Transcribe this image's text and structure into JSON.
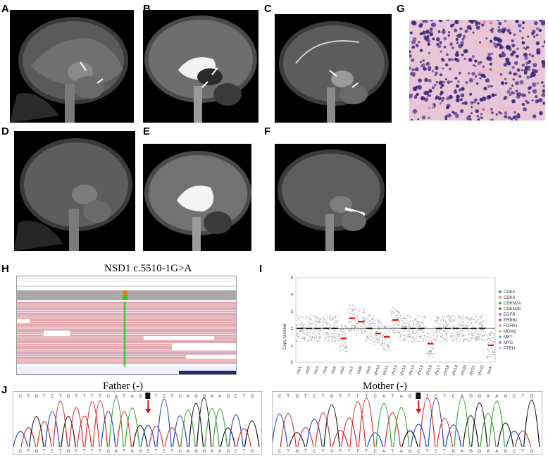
{
  "panels": {
    "A": "A",
    "B": "B",
    "C": "C",
    "D": "D",
    "E": "E",
    "F": "F",
    "G": "G",
    "H": "H",
    "I": "I",
    "J": "J"
  },
  "igv": {
    "title": "NSD1 c.5510-1G>A"
  },
  "cnv_plot": {
    "ylabel": "Copy Number",
    "yticks": [
      "0",
      "1",
      "2",
      "3",
      "4",
      "5"
    ],
    "chromosomes": [
      "chr1",
      "chr2",
      "chr3",
      "chr4",
      "chr5",
      "chr6",
      "chr7",
      "chr8",
      "chr9",
      "chr10",
      "chr11",
      "chr12",
      "chr13",
      "chr14",
      "chr15",
      "chr16",
      "chr17",
      "chr18",
      "chr19",
      "chr20",
      "chr21",
      "chr22",
      "chrX"
    ],
    "legend": [
      {
        "name": "CDK4",
        "color": "#1f77b4"
      },
      {
        "name": "CDK6",
        "color": "#ff7f0e"
      },
      {
        "name": "CDKN2A",
        "color": "#2ca02c"
      },
      {
        "name": "CDKN2B",
        "color": "#d62728"
      },
      {
        "name": "EGFR",
        "color": "#9467bd"
      },
      {
        "name": "ERBB2",
        "color": "#8c564b"
      },
      {
        "name": "FGFR1",
        "color": "#e377c2"
      },
      {
        "name": "MDM2",
        "color": "#bcbd22"
      },
      {
        "name": "MET",
        "color": "#17becf"
      },
      {
        "name": "MYC",
        "color": "#7f7f7f"
      },
      {
        "name": "PTEN",
        "color": "#aec7e8"
      }
    ]
  },
  "chart_data": {
    "type": "scatter",
    "ylabel": "Copy Number",
    "ylim": [
      0,
      5
    ],
    "categories": [
      "chr1",
      "chr2",
      "chr3",
      "chr4",
      "chr5",
      "chr6",
      "chr7",
      "chr8",
      "chr9",
      "chr10",
      "chr11",
      "chr12",
      "chr13",
      "chr14",
      "chr15",
      "chr16",
      "chr17",
      "chr18",
      "chr19",
      "chr20",
      "chr21",
      "chr22",
      "chrX"
    ],
    "segment_means": [
      2,
      2,
      2,
      2,
      2,
      1.4,
      2.6,
      2.4,
      2,
      1.7,
      1.5,
      2.5,
      2,
      2,
      2,
      1.1,
      2,
      2,
      2,
      2,
      2,
      2,
      1.0
    ],
    "baseline": 2
  },
  "sanger": {
    "father_label": "Father (-)",
    "mother_label": "Mother (-)",
    "father_seq_top": "CTGTCTGTTTTCATAGCTCTCAGGAAGCTG",
    "father_seq_bottom": "CTGTCTGTTTTCATAGCTCTCAGGAAGCTG",
    "mother_seq_top": "CTGTCTGTTTTCATAGCTCTCAGGAAGCTG",
    "mother_seq_bottom": "CTGTCTGTTTTCATAGCTCTCAGGAAGCTG"
  },
  "colors": {
    "A": "#2ca02c",
    "C": "#1f3fbf",
    "G": "#111111",
    "T": "#d62728",
    "read_fill": "#e7a7ac",
    "read_edge": "#9aa7d9",
    "mutation": "#2bd12b",
    "arrow": "#e01010"
  }
}
